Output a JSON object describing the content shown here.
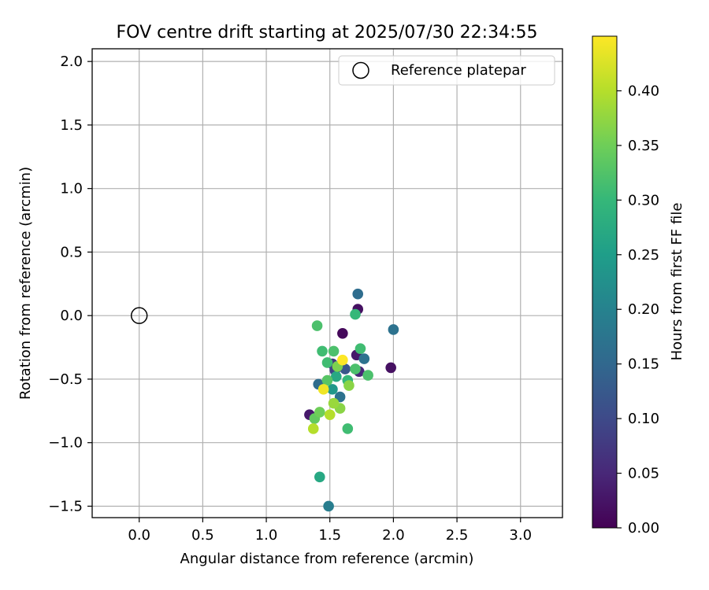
{
  "chart_data": {
    "type": "scatter",
    "title": "FOV centre drift starting at 2025/07/30 22:34:55",
    "xlabel": "Angular distance from reference (arcmin)",
    "ylabel": "Rotation from reference (arcmin)",
    "xlim": [
      -0.37,
      3.33
    ],
    "ylim": [
      -1.59,
      2.1
    ],
    "xticks": [
      "0.0",
      "0.5",
      "1.0",
      "1.5",
      "2.0",
      "2.5",
      "3.0"
    ],
    "yticks": [
      "−1.5",
      "−1.0",
      "−0.5",
      "0.0",
      "0.5",
      "1.0",
      "1.5",
      "2.0"
    ],
    "grid": true,
    "legend": {
      "position": "top-right",
      "entries": [
        "Reference platepar"
      ]
    },
    "reference_point": {
      "x": 0.0,
      "y": 0.0,
      "marker": "open-circle"
    },
    "colorbar": {
      "label": "Hours from first FF file",
      "colormap": "viridis",
      "range": [
        0.0,
        0.45
      ],
      "ticks": [
        "0.00",
        "0.05",
        "0.10",
        "0.15",
        "0.20",
        "0.25",
        "0.30",
        "0.35",
        "0.40"
      ],
      "colors": [
        "#440154",
        "#482878",
        "#3e4a89",
        "#31688e",
        "#26828e",
        "#1f9e89",
        "#35b779",
        "#6ece58",
        "#b5de2b",
        "#fde725"
      ]
    },
    "points": [
      {
        "x": 1.6,
        "y": -0.14,
        "c": 0.01
      },
      {
        "x": 1.72,
        "y": 0.05,
        "c": 0.02
      },
      {
        "x": 1.98,
        "y": -0.41,
        "c": 0.02
      },
      {
        "x": 1.34,
        "y": -0.78,
        "c": 0.03
      },
      {
        "x": 1.71,
        "y": -0.31,
        "c": 0.03
      },
      {
        "x": 1.73,
        "y": -0.44,
        "c": 0.05
      },
      {
        "x": 1.52,
        "y": -0.38,
        "c": 0.07
      },
      {
        "x": 1.54,
        "y": -0.43,
        "c": 0.09
      },
      {
        "x": 1.62,
        "y": -0.42,
        "c": 0.12
      },
      {
        "x": 1.72,
        "y": 0.17,
        "c": 0.16
      },
      {
        "x": 2.0,
        "y": -0.11,
        "c": 0.17
      },
      {
        "x": 1.77,
        "y": -0.34,
        "c": 0.17
      },
      {
        "x": 1.41,
        "y": -0.54,
        "c": 0.16
      },
      {
        "x": 1.58,
        "y": -0.64,
        "c": 0.17
      },
      {
        "x": 1.49,
        "y": -1.5,
        "c": 0.19
      },
      {
        "x": 1.42,
        "y": -1.27,
        "c": 0.27
      },
      {
        "x": 1.52,
        "y": -0.58,
        "c": 0.24
      },
      {
        "x": 1.55,
        "y": -0.48,
        "c": 0.27
      },
      {
        "x": 1.7,
        "y": 0.01,
        "c": 0.3
      },
      {
        "x": 1.4,
        "y": -0.08,
        "c": 0.32
      },
      {
        "x": 1.44,
        "y": -0.28,
        "c": 0.31
      },
      {
        "x": 1.53,
        "y": -0.28,
        "c": 0.32
      },
      {
        "x": 1.48,
        "y": -0.37,
        "c": 0.31
      },
      {
        "x": 1.64,
        "y": -0.51,
        "c": 0.3
      },
      {
        "x": 1.74,
        "y": -0.26,
        "c": 0.31
      },
      {
        "x": 1.8,
        "y": -0.47,
        "c": 0.32
      },
      {
        "x": 1.7,
        "y": -0.42,
        "c": 0.32
      },
      {
        "x": 1.48,
        "y": -0.51,
        "c": 0.33
      },
      {
        "x": 1.64,
        "y": -0.89,
        "c": 0.31
      },
      {
        "x": 1.38,
        "y": -0.81,
        "c": 0.34
      },
      {
        "x": 1.42,
        "y": -0.76,
        "c": 0.35
      },
      {
        "x": 1.56,
        "y": -0.4,
        "c": 0.36
      },
      {
        "x": 1.65,
        "y": -0.55,
        "c": 0.37
      },
      {
        "x": 1.58,
        "y": -0.73,
        "c": 0.37
      },
      {
        "x": 1.53,
        "y": -0.69,
        "c": 0.38
      },
      {
        "x": 1.5,
        "y": -0.78,
        "c": 0.4
      },
      {
        "x": 1.37,
        "y": -0.89,
        "c": 0.4
      },
      {
        "x": 1.45,
        "y": -0.58,
        "c": 0.44
      },
      {
        "x": 1.6,
        "y": -0.35,
        "c": 0.45
      }
    ]
  }
}
